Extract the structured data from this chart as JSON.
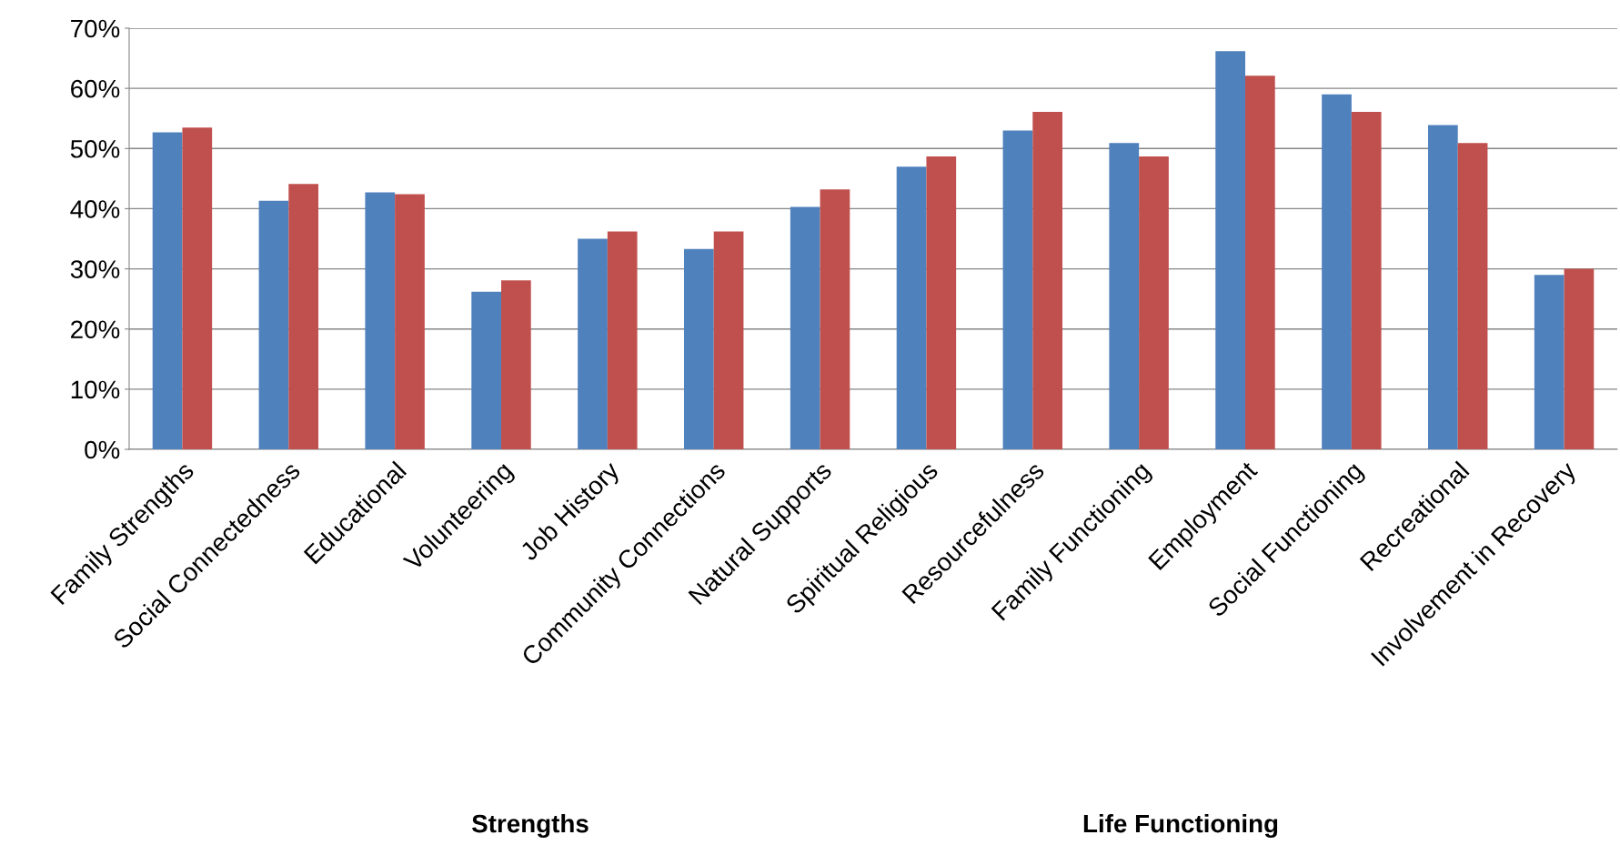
{
  "chart_data": {
    "type": "bar",
    "categories": [
      "Family Strengths",
      "Social Connectedness",
      "Educational",
      "Volunteering",
      "Job History",
      "Community Connections",
      "Natural Supports",
      "Spiritual Religious",
      "Resourcefulness",
      "Family Functioning",
      "Employment",
      "Social Functioning",
      "Recreational",
      "Involvement in Recovery"
    ],
    "series": [
      {
        "color": "#4f81bd",
        "values": [
          52.7,
          41.3,
          42.7,
          26.2,
          35.0,
          33.3,
          40.3,
          47.0,
          53.0,
          50.9,
          66.2,
          59.0,
          53.9,
          29.0
        ]
      },
      {
        "color": "#c0504d",
        "values": [
          53.5,
          44.1,
          42.4,
          28.1,
          36.2,
          36.2,
          43.2,
          48.7,
          56.1,
          48.7,
          62.1,
          56.1,
          50.9,
          30.0
        ]
      }
    ],
    "ylim": [
      0,
      70
    ],
    "yticks": [
      {
        "value": 0,
        "label": "0%"
      },
      {
        "value": 10,
        "label": "10%"
      },
      {
        "value": 20,
        "label": "20%"
      },
      {
        "value": 30,
        "label": "30%"
      },
      {
        "value": 40,
        "label": "40%"
      },
      {
        "value": 50,
        "label": "50%"
      },
      {
        "value": 60,
        "label": "60%"
      },
      {
        "value": 70,
        "label": "70%"
      }
    ],
    "grid": "y",
    "annotations": [
      "Strengths",
      "Life Functioning"
    ]
  }
}
